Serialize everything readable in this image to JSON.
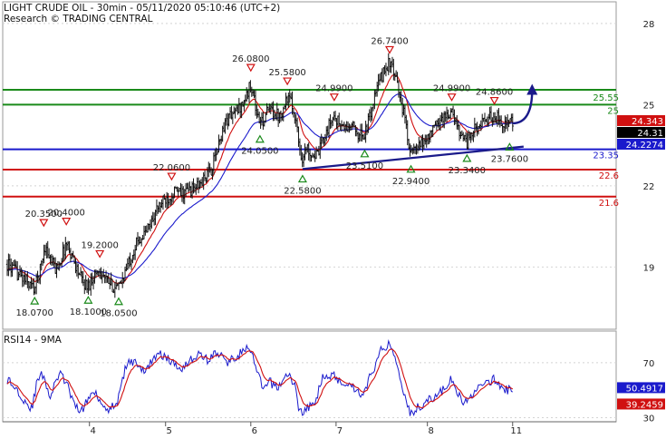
{
  "header": {
    "line1": "LIGHT CRUDE OIL - 30min - 05/11/2020 05:10:46 (UTC+2)",
    "line2": "Research © TRADING CENTRAL"
  },
  "chart_data": [
    {
      "type": "candlestick",
      "title": "LIGHT CRUDE OIL - 30min - 05/11/2020 05:10:46 (UTC+2)",
      "ylim": [
        16.7,
        28.8
      ],
      "y_ticks": [
        {
          "value": 28,
          "label": "28"
        },
        {
          "value": 25,
          "label": "25"
        },
        {
          "value": 22,
          "label": "22"
        },
        {
          "value": 19,
          "label": "19"
        }
      ],
      "x_ticks": [
        {
          "label": "4",
          "t": 0.135
        },
        {
          "label": "5",
          "t": 0.26
        },
        {
          "label": "6",
          "t": 0.4
        },
        {
          "label": "7",
          "t": 0.54
        },
        {
          "label": "8",
          "t": 0.69
        },
        {
          "label": "11",
          "t": 0.83
        }
      ],
      "levels": [
        {
          "value": 25.55,
          "label": "25.55",
          "color": "#1a8a1a"
        },
        {
          "value": 25.0,
          "label": "25",
          "color": "#1a8a1a"
        },
        {
          "value": 23.35,
          "label": "23.35",
          "color": "#1a1acc"
        },
        {
          "value": 22.6,
          "label": "22.6",
          "color": "#d01010"
        },
        {
          "value": 21.6,
          "label": "21.6",
          "color": "#d01010"
        }
      ],
      "price_tags": [
        {
          "value": 24.343,
          "label": "24.343",
          "color": "#d01010"
        },
        {
          "value": 24.31,
          "label": "24.31",
          "color": "#000000"
        },
        {
          "value": 24.2274,
          "label": "24.2274",
          "color": "#1a1acc"
        }
      ],
      "annotations": [
        {
          "label": "26.0800",
          "value": 26.08,
          "t": 0.4,
          "kind": "high"
        },
        {
          "label": "25.5800",
          "value": 25.58,
          "t": 0.46,
          "kind": "high"
        },
        {
          "label": "24.9900",
          "value": 24.99,
          "t": 0.537,
          "kind": "high"
        },
        {
          "label": "26.7400",
          "value": 26.74,
          "t": 0.628,
          "kind": "high"
        },
        {
          "label": "24.9900",
          "value": 24.99,
          "t": 0.73,
          "kind": "high"
        },
        {
          "label": "24.8600",
          "value": 24.86,
          "t": 0.8,
          "kind": "high"
        },
        {
          "label": "22.0600",
          "value": 22.06,
          "t": 0.27,
          "kind": "high"
        },
        {
          "label": "20.3500",
          "value": 20.35,
          "t": 0.06,
          "kind": "high"
        },
        {
          "label": "20.4000",
          "value": 20.4,
          "t": 0.097,
          "kind": "high"
        },
        {
          "label": "19.2000",
          "value": 19.2,
          "t": 0.152,
          "kind": "high"
        },
        {
          "label": "18.0700",
          "value": 18.07,
          "t": 0.045,
          "kind": "low"
        },
        {
          "label": "18.1000",
          "value": 18.1,
          "t": 0.133,
          "kind": "low"
        },
        {
          "label": "18.0500",
          "value": 18.05,
          "t": 0.183,
          "kind": "low"
        },
        {
          "label": "24.0500",
          "value": 24.05,
          "t": 0.415,
          "kind": "low"
        },
        {
          "label": "22.5800",
          "value": 22.58,
          "t": 0.485,
          "kind": "low"
        },
        {
          "label": "23.5100",
          "value": 23.51,
          "t": 0.587,
          "kind": "low"
        },
        {
          "label": "22.9400",
          "value": 22.94,
          "t": 0.663,
          "kind": "low"
        },
        {
          "label": "23.3400",
          "value": 23.34,
          "t": 0.755,
          "kind": "low"
        },
        {
          "label": "23.7600",
          "value": 23.76,
          "t": 0.825,
          "kind": "low"
        }
      ],
      "price_path": [
        [
          0.0,
          19.1
        ],
        [
          0.015,
          18.8
        ],
        [
          0.03,
          18.5
        ],
        [
          0.045,
          18.2
        ],
        [
          0.055,
          19.0
        ],
        [
          0.062,
          19.8
        ],
        [
          0.07,
          19.3
        ],
        [
          0.08,
          18.9
        ],
        [
          0.09,
          19.4
        ],
        [
          0.097,
          19.9
        ],
        [
          0.105,
          19.5
        ],
        [
          0.115,
          18.9
        ],
        [
          0.125,
          18.4
        ],
        [
          0.133,
          18.3
        ],
        [
          0.142,
          18.7
        ],
        [
          0.152,
          18.9
        ],
        [
          0.162,
          18.5
        ],
        [
          0.172,
          18.3
        ],
        [
          0.183,
          18.2
        ],
        [
          0.195,
          18.9
        ],
        [
          0.205,
          19.5
        ],
        [
          0.215,
          20.0
        ],
        [
          0.225,
          20.2
        ],
        [
          0.235,
          20.6
        ],
        [
          0.245,
          21.1
        ],
        [
          0.255,
          21.4
        ],
        [
          0.265,
          21.6
        ],
        [
          0.275,
          21.8
        ],
        [
          0.285,
          21.7
        ],
        [
          0.295,
          21.8
        ],
        [
          0.305,
          21.9
        ],
        [
          0.315,
          22.0
        ],
        [
          0.325,
          22.3
        ],
        [
          0.335,
          22.6
        ],
        [
          0.345,
          23.3
        ],
        [
          0.355,
          24.2
        ],
        [
          0.365,
          24.6
        ],
        [
          0.375,
          24.7
        ],
        [
          0.385,
          25.0
        ],
        [
          0.393,
          25.3
        ],
        [
          0.4,
          25.8
        ],
        [
          0.405,
          25.3
        ],
        [
          0.41,
          24.6
        ],
        [
          0.418,
          24.3
        ],
        [
          0.425,
          24.7
        ],
        [
          0.435,
          24.8
        ],
        [
          0.445,
          24.6
        ],
        [
          0.452,
          24.8
        ],
        [
          0.46,
          25.3
        ],
        [
          0.467,
          25.0
        ],
        [
          0.473,
          24.6
        ],
        [
          0.48,
          23.4
        ],
        [
          0.485,
          23.0
        ],
        [
          0.492,
          23.4
        ],
        [
          0.5,
          23.2
        ],
        [
          0.51,
          23.1
        ],
        [
          0.52,
          23.8
        ],
        [
          0.53,
          24.3
        ],
        [
          0.537,
          24.6
        ],
        [
          0.545,
          24.3
        ],
        [
          0.555,
          24.1
        ],
        [
          0.565,
          24.2
        ],
        [
          0.575,
          24.0
        ],
        [
          0.583,
          23.8
        ],
        [
          0.59,
          24.1
        ],
        [
          0.6,
          25.0
        ],
        [
          0.61,
          25.8
        ],
        [
          0.62,
          26.3
        ],
        [
          0.628,
          26.6
        ],
        [
          0.635,
          26.1
        ],
        [
          0.642,
          25.6
        ],
        [
          0.65,
          24.8
        ],
        [
          0.657,
          23.9
        ],
        [
          0.663,
          23.2
        ],
        [
          0.67,
          23.3
        ],
        [
          0.68,
          23.5
        ],
        [
          0.69,
          23.8
        ],
        [
          0.7,
          24.1
        ],
        [
          0.71,
          24.4
        ],
        [
          0.72,
          24.6
        ],
        [
          0.73,
          24.7
        ],
        [
          0.738,
          24.2
        ],
        [
          0.745,
          24.0
        ],
        [
          0.755,
          23.6
        ],
        [
          0.762,
          23.9
        ],
        [
          0.772,
          24.2
        ],
        [
          0.782,
          24.3
        ],
        [
          0.792,
          24.5
        ],
        [
          0.8,
          24.6
        ],
        [
          0.81,
          24.4
        ],
        [
          0.82,
          24.3
        ],
        [
          0.83,
          24.31
        ]
      ],
      "forecast_target": 25.7
    },
    {
      "type": "line",
      "title": "RSI14 - 9MA",
      "ylim": [
        27,
        93
      ],
      "y_ticks": [
        {
          "value": 70,
          "label": "70"
        },
        {
          "value": 30,
          "label": "30"
        }
      ],
      "price_tags": [
        {
          "value": 50.4917,
          "label": "50.4917",
          "color": "#1a1acc"
        },
        {
          "value": 39.2459,
          "label": "39.2459",
          "color": "#d01010"
        }
      ],
      "rsi_path": [
        [
          0.0,
          58
        ],
        [
          0.02,
          48
        ],
        [
          0.04,
          36
        ],
        [
          0.05,
          58
        ],
        [
          0.06,
          62
        ],
        [
          0.07,
          44
        ],
        [
          0.085,
          62
        ],
        [
          0.097,
          56
        ],
        [
          0.11,
          38
        ],
        [
          0.125,
          36
        ],
        [
          0.133,
          44
        ],
        [
          0.145,
          50
        ],
        [
          0.155,
          40
        ],
        [
          0.17,
          36
        ],
        [
          0.183,
          44
        ],
        [
          0.195,
          68
        ],
        [
          0.21,
          72
        ],
        [
          0.225,
          62
        ],
        [
          0.24,
          74
        ],
        [
          0.255,
          76
        ],
        [
          0.27,
          70
        ],
        [
          0.285,
          66
        ],
        [
          0.3,
          72
        ],
        [
          0.315,
          76
        ],
        [
          0.33,
          72
        ],
        [
          0.345,
          78
        ],
        [
          0.36,
          70
        ],
        [
          0.375,
          74
        ],
        [
          0.39,
          80
        ],
        [
          0.4,
          78
        ],
        [
          0.41,
          64
        ],
        [
          0.42,
          50
        ],
        [
          0.43,
          56
        ],
        [
          0.445,
          52
        ],
        [
          0.46,
          62
        ],
        [
          0.472,
          54
        ],
        [
          0.48,
          34
        ],
        [
          0.49,
          36
        ],
        [
          0.505,
          40
        ],
        [
          0.52,
          62
        ],
        [
          0.537,
          60
        ],
        [
          0.55,
          56
        ],
        [
          0.565,
          54
        ],
        [
          0.583,
          46
        ],
        [
          0.6,
          64
        ],
        [
          0.615,
          80
        ],
        [
          0.628,
          84
        ],
        [
          0.64,
          70
        ],
        [
          0.652,
          48
        ],
        [
          0.663,
          32
        ],
        [
          0.675,
          38
        ],
        [
          0.69,
          42
        ],
        [
          0.705,
          46
        ],
        [
          0.72,
          52
        ],
        [
          0.73,
          58
        ],
        [
          0.74,
          46
        ],
        [
          0.755,
          40
        ],
        [
          0.77,
          52
        ],
        [
          0.785,
          54
        ],
        [
          0.8,
          58
        ],
        [
          0.815,
          50
        ],
        [
          0.83,
          50.5
        ]
      ]
    }
  ]
}
